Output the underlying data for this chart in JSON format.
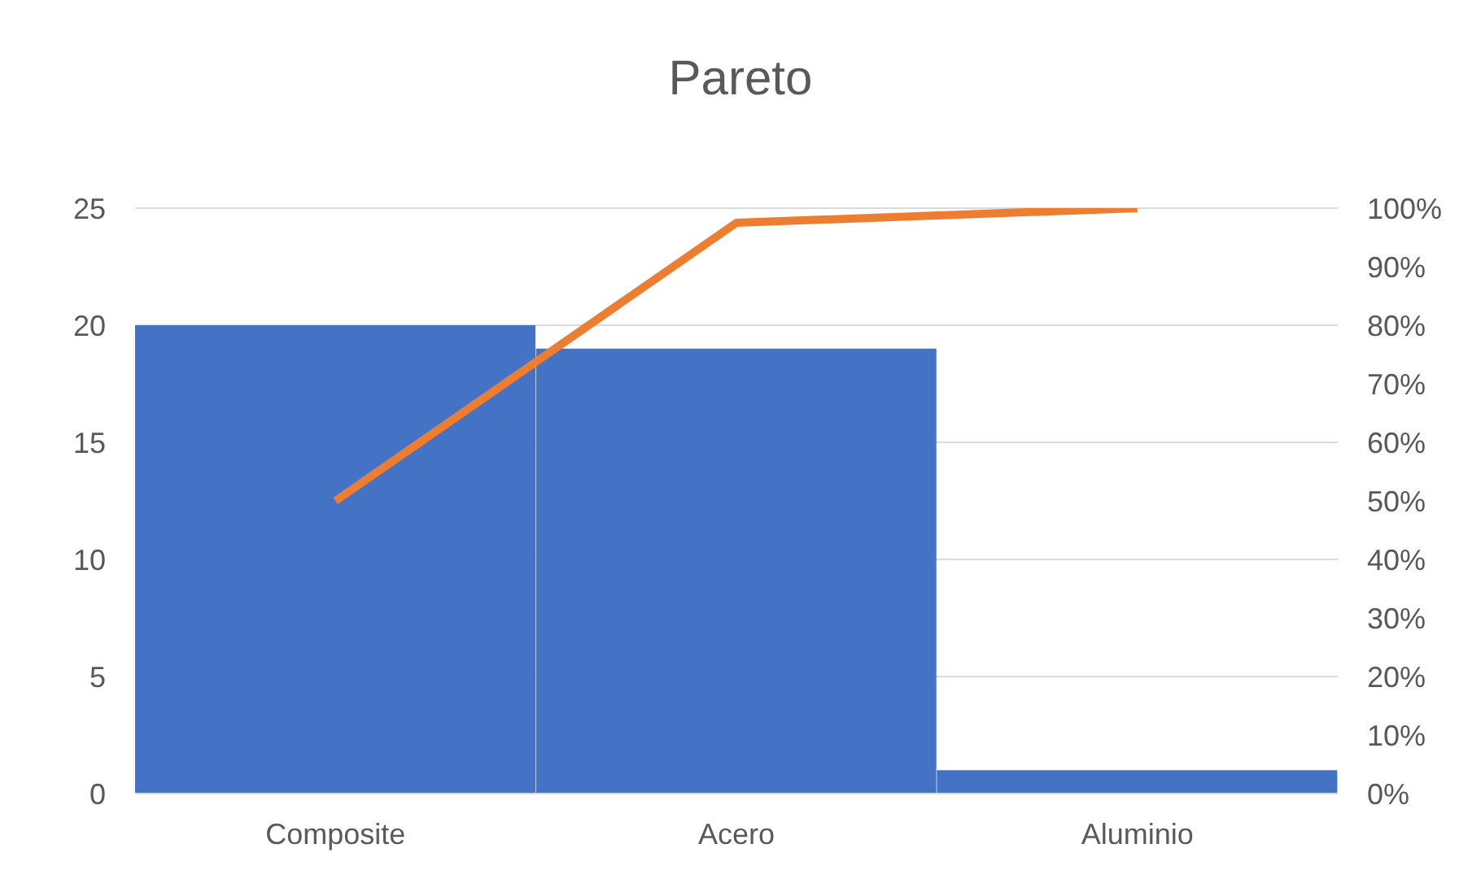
{
  "chart_data": {
    "type": "bar",
    "title": "Pareto",
    "categories": [
      "Composite",
      "Acero",
      "Aluminio"
    ],
    "series": [
      {
        "color": "#4472c4",
        "values": [
          20,
          19,
          1
        ]
      },
      {
        "type": "line",
        "axis": "y2",
        "color": "#ed7d31",
        "values": [
          50,
          97.5,
          100
        ]
      }
    ],
    "ylim": [
      0,
      25
    ],
    "yticks": [
      0,
      5,
      10,
      15,
      20,
      25
    ],
    "y2lim": [
      0,
      100
    ],
    "y2ticks": [
      {
        "value": 0,
        "label": "0%"
      },
      {
        "value": 10,
        "label": "10%"
      },
      {
        "value": 20,
        "label": "20%"
      },
      {
        "value": 30,
        "label": "30%"
      },
      {
        "value": 40,
        "label": "40%"
      },
      {
        "value": 50,
        "label": "50%"
      },
      {
        "value": 60,
        "label": "60%"
      },
      {
        "value": 70,
        "label": "70%"
      },
      {
        "value": 80,
        "label": "80%"
      },
      {
        "value": 90,
        "label": "90%"
      },
      {
        "value": 100,
        "label": "100%"
      }
    ],
    "grid": "y"
  }
}
